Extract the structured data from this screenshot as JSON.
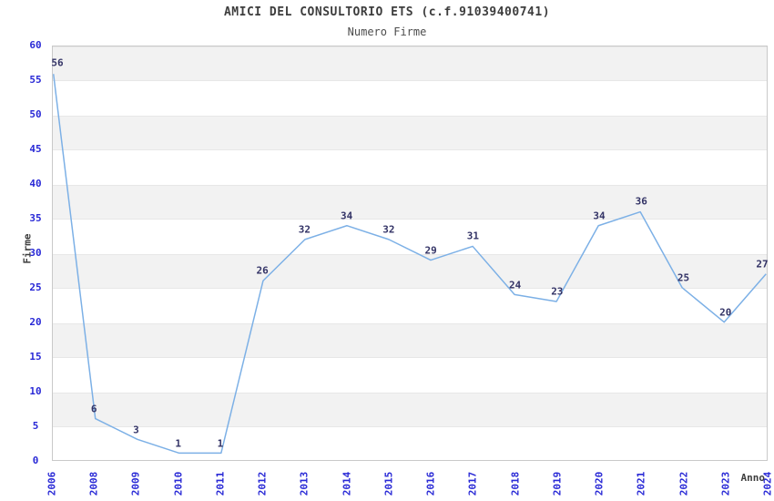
{
  "header": {
    "title": "AMICI DEL CONSULTORIO ETS (c.f.91039400741)",
    "subtitle": "Numero Firme"
  },
  "chart_data": {
    "type": "line",
    "title": "AMICI DEL CONSULTORIO ETS (c.f.91039400741)",
    "subtitle": "Numero Firme",
    "categories": [
      "2006",
      "2008",
      "2009",
      "2010",
      "2011",
      "2012",
      "2013",
      "2014",
      "2015",
      "2016",
      "2017",
      "2018",
      "2019",
      "2020",
      "2021",
      "2022",
      "2023",
      "2024"
    ],
    "values": [
      56,
      6,
      3,
      1,
      1,
      26,
      32,
      34,
      32,
      29,
      31,
      24,
      23,
      34,
      36,
      25,
      20,
      27
    ],
    "xlabel": "Anno",
    "ylabel": "Firme",
    "ylim": [
      0,
      60
    ],
    "ytick_step": 5,
    "grid": "alternating-horizontal-bands",
    "legend": "none",
    "data_labels": "on",
    "colors": {
      "line": "#7cb0e6",
      "tick_label": "#2929d6",
      "data_label": "#333366",
      "band_fill": "#f2f2f2",
      "plot_border": "#c9c9c9",
      "title": "#3d3d3d",
      "subtitle": "#4d4d4d"
    }
  }
}
